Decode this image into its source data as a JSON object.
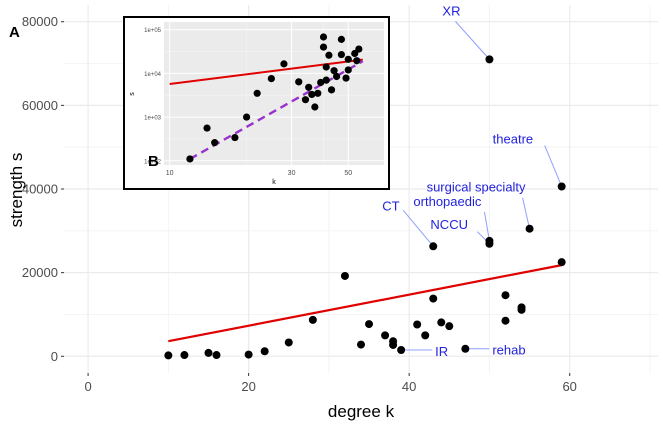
{
  "chart_data": [
    {
      "panel": "A",
      "type": "scatter",
      "xlabel": "degree k",
      "ylabel": "strength s",
      "xlim": [
        -3,
        71
      ],
      "ylim": [
        -4000,
        84000
      ],
      "xticks": [
        0,
        20,
        40,
        60
      ],
      "xtick_labels": [
        "0",
        "20",
        "40",
        "60"
      ],
      "yticks": [
        0,
        20000,
        40000,
        60000,
        80000
      ],
      "ytick_labels": [
        "0",
        "20000",
        "40000",
        "60000",
        "80000"
      ],
      "grid": true,
      "colors": {
        "points": "#000000",
        "fit": "#e00000",
        "labels": "#2222dd",
        "panel_bg": "#ffffff",
        "grid": "#ebebeb"
      },
      "points": [
        {
          "x": 10,
          "y": 200
        },
        {
          "x": 12,
          "y": 300
        },
        {
          "x": 15,
          "y": 800
        },
        {
          "x": 16,
          "y": 300
        },
        {
          "x": 20,
          "y": 400
        },
        {
          "x": 22,
          "y": 1200
        },
        {
          "x": 25,
          "y": 3300
        },
        {
          "x": 28,
          "y": 8700
        },
        {
          "x": 32,
          "y": 19200
        },
        {
          "x": 34,
          "y": 2800
        },
        {
          "x": 35,
          "y": 7700
        },
        {
          "x": 37,
          "y": 5000
        },
        {
          "x": 38,
          "y": 3600
        },
        {
          "x": 38,
          "y": 2700
        },
        {
          "x": 39,
          "y": 1500
        },
        {
          "x": 41,
          "y": 7600
        },
        {
          "x": 42,
          "y": 5000
        },
        {
          "x": 43,
          "y": 13800
        },
        {
          "x": 43,
          "y": 26300
        },
        {
          "x": 44,
          "y": 8100
        },
        {
          "x": 45,
          "y": 7200
        },
        {
          "x": 47,
          "y": 1800
        },
        {
          "x": 50,
          "y": 27600
        },
        {
          "x": 50,
          "y": 26900
        },
        {
          "x": 50,
          "y": 71000
        },
        {
          "x": 52,
          "y": 14600
        },
        {
          "x": 52,
          "y": 8500
        },
        {
          "x": 54,
          "y": 11700
        },
        {
          "x": 54,
          "y": 11100
        },
        {
          "x": 55,
          "y": 30500
        },
        {
          "x": 59,
          "y": 40600
        },
        {
          "x": 59,
          "y": 22500
        }
      ],
      "fit_line": {
        "x": [
          10,
          59
        ],
        "y": [
          3600,
          21800
        ]
      },
      "annotations": [
        {
          "text": "XR",
          "x": 50,
          "y": 71000
        },
        {
          "text": "theatre",
          "x": 59,
          "y": 40600
        },
        {
          "text": "surgical specialty",
          "x": 55,
          "y": 30500
        },
        {
          "text": "orthopaedic",
          "x": 50,
          "y": 27600
        },
        {
          "text": "NCCU",
          "x": 50,
          "y": 26900
        },
        {
          "text": "CT",
          "x": 43,
          "y": 26300
        },
        {
          "text": "IR",
          "x": 39,
          "y": 1500
        },
        {
          "text": "rehab",
          "x": 47,
          "y": 1800
        }
      ]
    },
    {
      "panel": "B",
      "type": "scatter",
      "xscale": "log",
      "yscale": "log",
      "xlabel": "k",
      "ylabel": "s",
      "xlim": [
        9.5,
        69
      ],
      "ylim": [
        80,
        150000
      ],
      "xticks": [
        10,
        30,
        50
      ],
      "xtick_labels": [
        "10",
        "30",
        "50"
      ],
      "yticks": [
        100,
        1000,
        10000,
        100000
      ],
      "ytick_labels": [
        "1e+02",
        "1e+03",
        "1e+04",
        "1e+05"
      ],
      "grid": true,
      "colors": {
        "points": "#000000",
        "fit": "#e00000",
        "dashed_fit": "#9932cc",
        "panel_bg": "#ebebeb",
        "grid": "#ffffff"
      },
      "points": [
        {
          "x": 12,
          "y": 110
        },
        {
          "x": 14,
          "y": 560
        },
        {
          "x": 15,
          "y": 260
        },
        {
          "x": 18,
          "y": 340
        },
        {
          "x": 20,
          "y": 1000
        },
        {
          "x": 22,
          "y": 3500
        },
        {
          "x": 25,
          "y": 7600
        },
        {
          "x": 28,
          "y": 16500
        },
        {
          "x": 32,
          "y": 6400
        },
        {
          "x": 34,
          "y": 2500
        },
        {
          "x": 35,
          "y": 4800
        },
        {
          "x": 36,
          "y": 3300
        },
        {
          "x": 37,
          "y": 1700
        },
        {
          "x": 38,
          "y": 3500
        },
        {
          "x": 39,
          "y": 6200
        },
        {
          "x": 40,
          "y": 68000
        },
        {
          "x": 40,
          "y": 40000
        },
        {
          "x": 41,
          "y": 14000
        },
        {
          "x": 41,
          "y": 7000
        },
        {
          "x": 42,
          "y": 26000
        },
        {
          "x": 43,
          "y": 4200
        },
        {
          "x": 44,
          "y": 11500
        },
        {
          "x": 45,
          "y": 8500
        },
        {
          "x": 47,
          "y": 27000
        },
        {
          "x": 47,
          "y": 60000
        },
        {
          "x": 49,
          "y": 7800
        },
        {
          "x": 50,
          "y": 12000
        },
        {
          "x": 50,
          "y": 21000
        },
        {
          "x": 53,
          "y": 28500
        },
        {
          "x": 54,
          "y": 19500
        },
        {
          "x": 55,
          "y": 36000
        }
      ],
      "fit_line": {
        "x": [
          10,
          57
        ],
        "y": [
          5700,
          20700
        ]
      },
      "dashed_fit_line": {
        "x": [
          12,
          57
        ],
        "y": [
          110,
          19000
        ]
      }
    }
  ]
}
